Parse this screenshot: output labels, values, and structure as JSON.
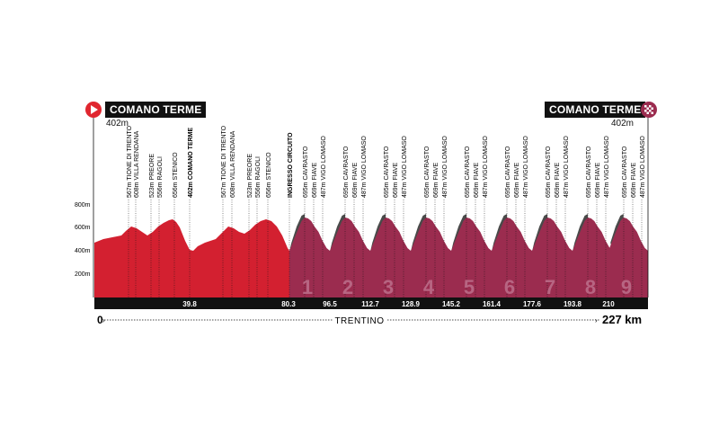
{
  "start": {
    "name": "COMANO TERME",
    "altitude": "402m"
  },
  "finish": {
    "name": "COMANO TERME",
    "altitude": "402m"
  },
  "y_axis_labels": [
    "800m",
    "600m",
    "400m",
    "200m"
  ],
  "distance_start": "0",
  "distance_total": "227 km",
  "region": "TRENTINO",
  "km_markers": [
    "39.8",
    "80.3",
    "96.5",
    "112.7",
    "128.9",
    "145.2",
    "161.4",
    "177.6",
    "193.8",
    "210"
  ],
  "lap_numbers": [
    "1",
    "2",
    "3",
    "4",
    "5",
    "6",
    "7",
    "8",
    "9"
  ],
  "first_loop_waypoints": [
    "567m TIONE DI TRENTO",
    "608m VILLA RENDANA",
    "523m PREORE",
    "556m RAGOLI",
    "656m STENICO"
  ],
  "second_loop_waypoints": [
    "567m TIONE DI TRENTO",
    "608m VILLA RENDANA",
    "523m PREORE",
    "556m RAGOLI",
    "656m STENICO"
  ],
  "comano_label": "402m COMANO TERME",
  "circuit_label": "INGRESSO CIRCUITO",
  "lap_waypoints": [
    "695m CAVRASTO",
    "669m FIAVE",
    "487m VIGO LOMASO"
  ],
  "colors": {
    "red": "#d32030",
    "purple": "#9b2c4f",
    "dark": "#111111",
    "shadow": "#4a4a4a"
  }
}
